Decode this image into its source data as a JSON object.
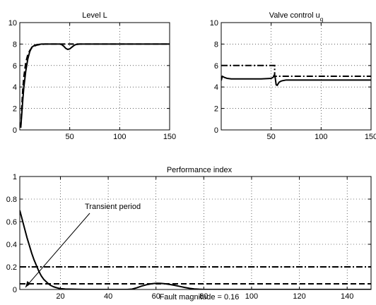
{
  "chart_data": [
    {
      "type": "line",
      "title": "Level L",
      "xlabel": "",
      "ylabel": "",
      "xlim": [
        0,
        150
      ],
      "ylim": [
        0,
        10
      ],
      "xticks": [
        "50",
        "100",
        "150"
      ],
      "yticks": [
        "0",
        "2",
        "4",
        "6",
        "8",
        "10"
      ],
      "grid": true,
      "series": [
        {
          "style": "solid",
          "x": [
            1,
            2,
            3,
            4,
            6,
            8,
            10,
            12,
            15,
            18,
            22,
            26,
            30,
            35,
            40,
            42,
            44,
            46,
            48,
            50,
            52,
            54,
            56,
            60,
            65,
            70,
            80,
            90,
            100,
            110,
            120,
            130,
            140,
            150
          ],
          "y": [
            0.3,
            1.5,
            2.8,
            3.9,
            5.5,
            6.6,
            7.3,
            7.7,
            7.9,
            7.95,
            8.0,
            8.0,
            8.0,
            8.0,
            8.0,
            7.95,
            7.8,
            7.6,
            7.5,
            7.55,
            7.7,
            7.85,
            7.95,
            8.0,
            8.0,
            8.0,
            8.0,
            8.0,
            8.0,
            8.0,
            8.0,
            8.0,
            8.0,
            8.0
          ]
        },
        {
          "style": "dashed",
          "x": [
            1,
            2,
            3,
            4,
            6,
            8,
            10,
            12,
            14,
            17,
            20,
            25,
            30,
            40,
            60,
            80,
            100,
            120,
            150
          ],
          "y": [
            0.2,
            2.2,
            3.8,
            4.9,
            6.3,
            7.0,
            7.4,
            7.65,
            7.8,
            7.9,
            7.95,
            8.0,
            8.0,
            8.0,
            8.0,
            8.0,
            8.0,
            8.0,
            8.0
          ]
        }
      ]
    },
    {
      "type": "line",
      "title": "Valve control u",
      "title_subscript": "q",
      "xlabel": "",
      "ylabel": "",
      "xlim": [
        0,
        150
      ],
      "ylim": [
        0,
        10
      ],
      "xticks": [
        "50",
        "100",
        "150"
      ],
      "yticks": [
        "0",
        "2",
        "4",
        "6",
        "8",
        "10"
      ],
      "grid": true,
      "series": [
        {
          "style": "solid",
          "x": [
            0,
            1,
            3,
            6,
            10,
            20,
            30,
            40,
            50,
            52,
            53,
            54,
            55,
            56,
            57,
            58,
            60,
            62,
            65,
            70,
            80,
            100,
            120,
            150
          ],
          "y": [
            4.6,
            5.0,
            4.9,
            4.8,
            4.75,
            4.75,
            4.75,
            4.75,
            4.8,
            4.9,
            5.1,
            4.9,
            4.2,
            4.15,
            4.3,
            4.45,
            4.55,
            4.6,
            4.65,
            4.65,
            4.65,
            4.65,
            4.65,
            4.65
          ]
        },
        {
          "style": "dashdot",
          "x": [
            0,
            53.5,
            53.5,
            150
          ],
          "y": [
            6.0,
            6.0,
            5.0,
            5.0
          ]
        }
      ]
    },
    {
      "type": "line",
      "title": "Performance index",
      "xlabel": "Fault magnitude = 0.16",
      "ylabel": "",
      "xlim": [
        3,
        150
      ],
      "ylim": [
        0,
        1
      ],
      "xticks": [
        "20",
        "40",
        "60",
        "80",
        "100",
        "120",
        "140"
      ],
      "yticks": [
        "0",
        "0.2",
        "0.4",
        "0.6",
        "0.8",
        "1"
      ],
      "grid": true,
      "annotation": "Transient period",
      "series": [
        {
          "style": "solid",
          "x": [
            3,
            4,
            5,
            6,
            7,
            8,
            9,
            10,
            11,
            12,
            13,
            14,
            15,
            16,
            17,
            18,
            19,
            20,
            22,
            25,
            30,
            35,
            40,
            45,
            48,
            50,
            52,
            54,
            56,
            58,
            60,
            62,
            64,
            66,
            68,
            70,
            72,
            74,
            76,
            78,
            80,
            90,
            100,
            120,
            150
          ],
          "y": [
            0.7,
            0.62,
            0.54,
            0.46,
            0.39,
            0.32,
            0.26,
            0.21,
            0.16,
            0.12,
            0.09,
            0.07,
            0.05,
            0.035,
            0.025,
            0.018,
            0.012,
            0.008,
            0.004,
            0.002,
            0.0,
            0.0,
            0.0,
            0.0,
            0.0,
            0.003,
            0.015,
            0.03,
            0.042,
            0.05,
            0.055,
            0.054,
            0.05,
            0.044,
            0.036,
            0.027,
            0.018,
            0.01,
            0.005,
            0.002,
            0.0,
            0.0,
            0.0,
            0.0,
            0.0
          ]
        },
        {
          "style": "dashdot",
          "x": [
            3,
            150
          ],
          "y": [
            0.2,
            0.2
          ]
        },
        {
          "style": "dashed",
          "x": [
            3,
            150
          ],
          "y": [
            0.05,
            0.05
          ]
        }
      ]
    }
  ]
}
